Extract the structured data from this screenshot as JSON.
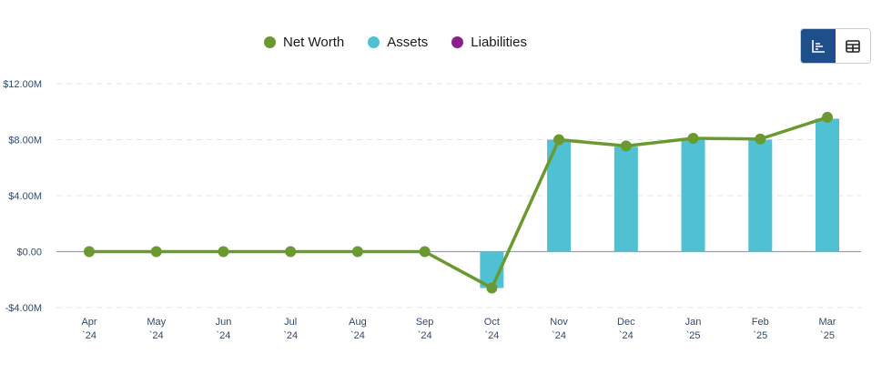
{
  "legend": [
    {
      "label": "Net Worth",
      "color": "#6a9a2f"
    },
    {
      "label": "Assets",
      "color": "#4fc1d2"
    },
    {
      "label": "Liabilities",
      "color": "#8b1f8b"
    }
  ],
  "view_toggle": {
    "chart_icon": "bar-chart-icon",
    "table_icon": "table-icon",
    "active": "chart"
  },
  "chart_data": {
    "type": "bar",
    "categories": [
      "Apr `24",
      "May `24",
      "Jun `24",
      "Jul `24",
      "Aug `24",
      "Sep `24",
      "Oct `24",
      "Nov `24",
      "Dec `24",
      "Jan `25",
      "Feb `25",
      "Mar `25"
    ],
    "x_tick_labels": [
      [
        "Apr",
        "`24"
      ],
      [
        "May",
        "`24"
      ],
      [
        "Jun",
        "`24"
      ],
      [
        "Jul",
        "`24"
      ],
      [
        "Aug",
        "`24"
      ],
      [
        "Sep",
        "`24"
      ],
      [
        "Oct",
        "`24"
      ],
      [
        "Nov",
        "`24"
      ],
      [
        "Dec",
        "`24"
      ],
      [
        "Jan",
        "`25"
      ],
      [
        "Feb",
        "`25"
      ],
      [
        "Mar",
        "`25"
      ]
    ],
    "series": [
      {
        "name": "Assets",
        "type": "bar",
        "color": "#4fc1d2",
        "values": [
          0,
          0,
          0,
          0,
          0,
          0,
          -2.6,
          8.0,
          7.5,
          8.0,
          8.0,
          9.5
        ]
      },
      {
        "name": "Liabilities",
        "type": "bar",
        "color": "#8b1f8b",
        "values": [
          0,
          0,
          0,
          0,
          0,
          0,
          0,
          0,
          0,
          0,
          0,
          0
        ]
      },
      {
        "name": "Net Worth",
        "type": "line",
        "color": "#6a9a2f",
        "values": [
          0,
          0,
          0,
          0,
          0,
          0,
          -2.6,
          8.0,
          7.55,
          8.1,
          8.05,
          9.6
        ]
      }
    ],
    "y_ticks": [
      12,
      8,
      4,
      0,
      -4
    ],
    "y_tick_labels": [
      "$12.00M",
      "$8.00M",
      "$4.00M",
      "$0.00",
      "-$4.00M"
    ],
    "ylim": [
      -4,
      12
    ],
    "units": "$M",
    "grid": true,
    "legend_position": "top-center"
  }
}
